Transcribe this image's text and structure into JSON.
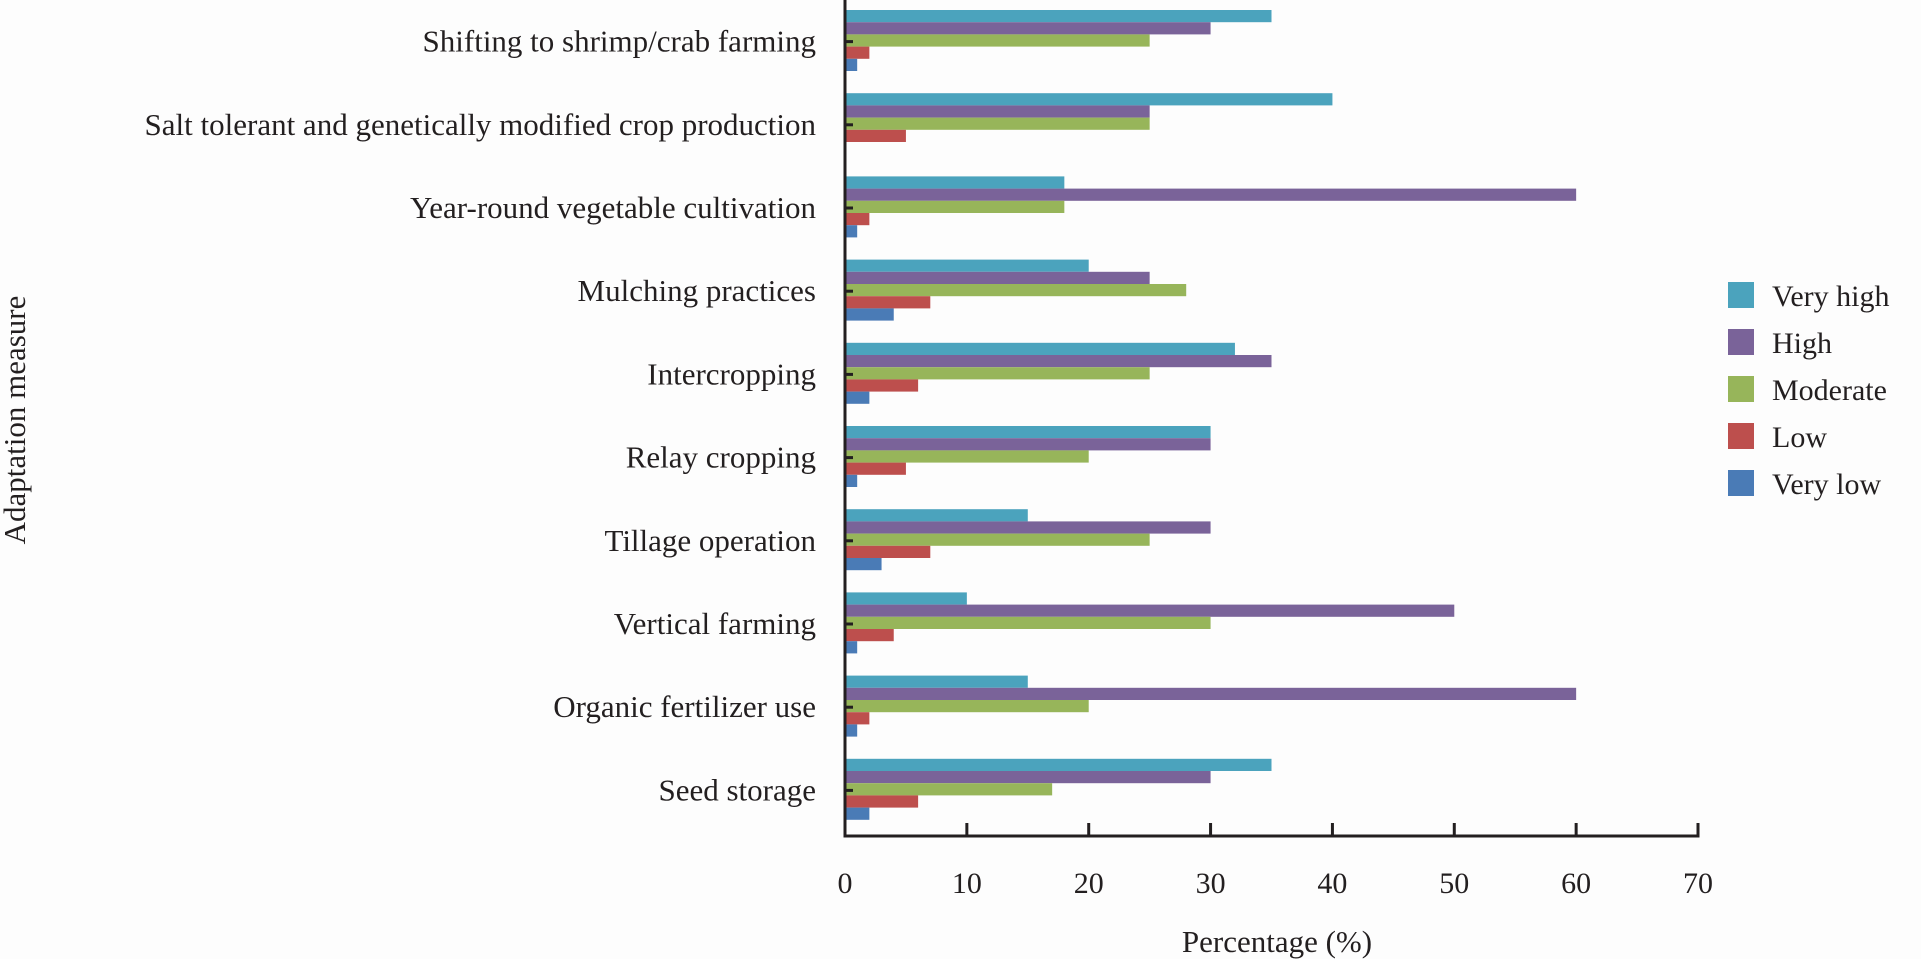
{
  "chart_data": {
    "type": "bar",
    "orientation": "horizontal",
    "title": "",
    "xlabel": "Percentage (%)",
    "ylabel": "Adaptation measure",
    "xlim": [
      0,
      70
    ],
    "xticks": [
      0,
      10,
      20,
      30,
      40,
      50,
      60,
      70
    ],
    "grid": false,
    "legend_position": "right",
    "categories": [
      "Shifting to shrimp/crab farming",
      "Salt tolerant and genetically modified crop production",
      "Year-round vegetable cultivation",
      "Mulching practices",
      "Intercropping",
      "Relay cropping",
      "Tillage operation",
      "Vertical farming",
      "Organic fertilizer use",
      "Seed storage"
    ],
    "series": [
      {
        "name": "Very high",
        "color": "#4ba3bd",
        "values": [
          35,
          40,
          18,
          20,
          32,
          30,
          15,
          10,
          15,
          35
        ]
      },
      {
        "name": "High",
        "color": "#7a6399",
        "values": [
          30,
          25,
          60,
          25,
          35,
          30,
          30,
          50,
          60,
          30
        ]
      },
      {
        "name": "Moderate",
        "color": "#97b55a",
        "values": [
          25,
          25,
          18,
          28,
          25,
          20,
          25,
          30,
          20,
          17
        ]
      },
      {
        "name": "Low",
        "color": "#bd4f4d",
        "values": [
          2,
          5,
          2,
          7,
          6,
          5,
          7,
          4,
          2,
          6
        ]
      },
      {
        "name": "Very low",
        "color": "#4a7bb6",
        "values": [
          1,
          0,
          1,
          4,
          2,
          1,
          3,
          1,
          1,
          2
        ]
      }
    ]
  }
}
